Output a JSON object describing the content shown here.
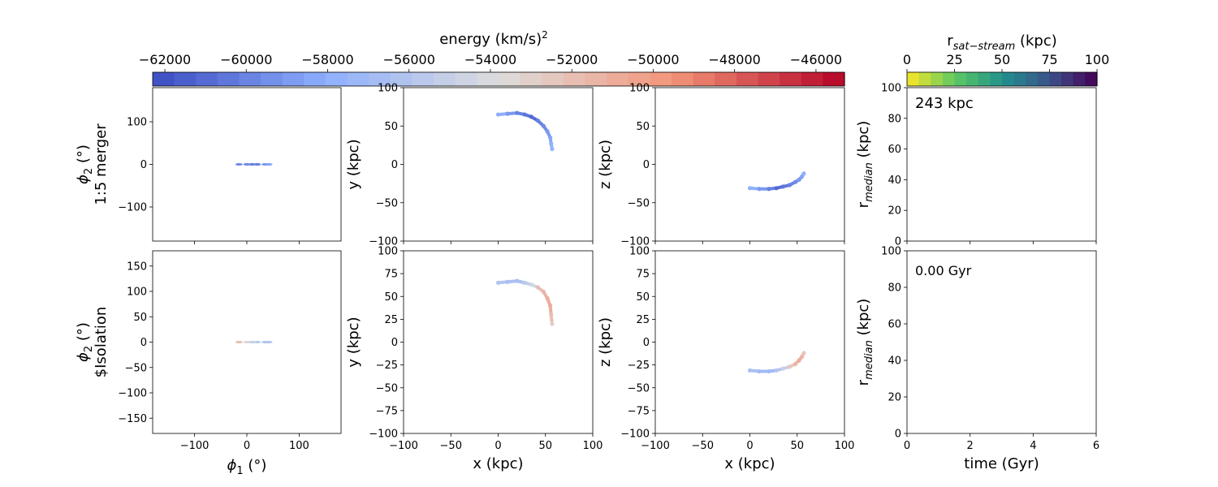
{
  "energy_colorbar": {
    "label_main": "energy (km/s)",
    "label_sup": "2",
    "ticks": [
      "−62000",
      "−60000",
      "−58000",
      "−56000",
      "−54000",
      "−52000",
      "−50000",
      "−48000",
      "−46000"
    ],
    "tick_values": [
      -62000,
      -60000,
      -58000,
      -56000,
      -54000,
      -52000,
      -50000,
      -48000,
      -46000
    ],
    "range": [
      -62300,
      -45300
    ],
    "colormap": "coolwarm"
  },
  "rsat_colorbar": {
    "label_main": "r",
    "label_sub": "sat−stream",
    "label_unit": " (kpc)",
    "ticks": [
      "0",
      "25",
      "50",
      "75",
      "100"
    ],
    "tick_values": [
      0,
      25,
      50,
      75,
      100
    ],
    "range": [
      0,
      100
    ],
    "colormap": "viridis_r"
  },
  "rows": [
    {
      "ylabel_phi": "ϕ",
      "ylabel_phi_sub": "2",
      "ylabel_phi_unit": " (°)",
      "ylabel_name": "1:5 merger",
      "sky_yticks": [
        "100",
        "0",
        "−100"
      ],
      "sky_ytick_values": [
        100,
        0,
        -100
      ],
      "sky_ylim": [
        -180,
        180
      ],
      "xy_ylabel": "y (kpc)",
      "xz_ylabel": "z (kpc)",
      "xy_yticks": [
        "100",
        "50",
        "0",
        "−50",
        "−100"
      ],
      "xy_ytick_values": [
        100,
        50,
        0,
        -50,
        -100
      ],
      "xz_yticks": [
        "100",
        "50",
        "0",
        "−50",
        "−100"
      ],
      "xz_ytick_values": [
        100,
        50,
        0,
        -50,
        -100
      ],
      "r_ylabel_main": "r",
      "r_ylabel_sub": "median",
      "r_ylabel_unit": " (kpc)",
      "r_yticks": [
        "100",
        "80",
        "60",
        "40",
        "20",
        "0"
      ],
      "r_ytick_values": [
        100,
        80,
        60,
        40,
        20,
        0
      ],
      "annotation": "243 kpc"
    },
    {
      "ylabel_phi": "ϕ",
      "ylabel_phi_sub": "2",
      "ylabel_phi_unit": " (°)",
      "ylabel_name": "$Isolation",
      "sky_yticks": [
        "150",
        "100",
        "50",
        "0",
        "−50",
        "−100",
        "−150"
      ],
      "sky_ytick_values": [
        150,
        100,
        50,
        0,
        -50,
        -100,
        -150
      ],
      "sky_ylim": [
        -180,
        180
      ],
      "xy_ylabel": "y (kpc)",
      "xz_ylabel": "z (kpc)",
      "xy_yticks": [
        "100",
        "75",
        "50",
        "25",
        "0",
        "−25",
        "−50",
        "−75",
        "−100"
      ],
      "xy_ytick_values": [
        100,
        75,
        50,
        25,
        0,
        -25,
        -50,
        -75,
        -100
      ],
      "xz_yticks": [
        "100",
        "75",
        "50",
        "25",
        "0",
        "−25",
        "−50",
        "−75",
        "−100"
      ],
      "xz_ytick_values": [
        100,
        75,
        50,
        25,
        0,
        -25,
        -50,
        -75,
        -100
      ],
      "r_ylabel_main": "r",
      "r_ylabel_sub": "median",
      "r_ylabel_unit": " (kpc)",
      "r_yticks": [
        "100",
        "80",
        "60",
        "40",
        "20",
        "0"
      ],
      "r_ytick_values": [
        100,
        80,
        60,
        40,
        20,
        0
      ],
      "annotation": "0.00 Gyr"
    }
  ],
  "bottom_axes": {
    "sky_xlabel_phi": "ϕ",
    "sky_xlabel_sub": "1",
    "sky_xlabel_unit": " (°)",
    "sky_xticks": [
      "−100",
      "0",
      "100"
    ],
    "sky_xtick_values": [
      -100,
      0,
      100
    ],
    "sky_xlim": [
      -180,
      180
    ],
    "xy_xlabel": "x (kpc)",
    "xz_xlabel": "x (kpc)",
    "kpc_xticks": [
      "−100",
      "−50",
      "0",
      "50",
      "100"
    ],
    "kpc_xtick_values": [
      -100,
      -50,
      0,
      50,
      100
    ],
    "kpc_lim": [
      -100,
      100
    ],
    "time_xlabel": "time (Gyr)",
    "time_xticks": [
      "0",
      "2",
      "4",
      "6"
    ],
    "time_xtick_values": [
      0,
      2,
      4,
      6
    ],
    "time_xlim": [
      0,
      6
    ],
    "r_ylim": [
      0,
      100
    ]
  },
  "chart_data": [
    {
      "type": "scatter",
      "panel": "sky-merger",
      "xlabel": "",
      "ylabel": "ϕ2 (°) 1:5 merger",
      "xlim": [
        -180,
        180
      ],
      "ylim": [
        -180,
        180
      ],
      "points": [
        [
          -15,
          0,
          -59500
        ],
        [
          0,
          0,
          -59500
        ],
        [
          10,
          0,
          -60000
        ],
        [
          20,
          0,
          -60000
        ],
        [
          35,
          0,
          -59000
        ],
        [
          42,
          0,
          -58500
        ]
      ]
    },
    {
      "type": "scatter",
      "panel": "xy-merger",
      "xlabel": "",
      "ylabel": "y (kpc)",
      "xlim": [
        -100,
        100
      ],
      "ylim": [
        -100,
        100
      ],
      "points": [
        [
          0,
          65,
          -58000
        ],
        [
          10,
          66,
          -59000
        ],
        [
          20,
          67,
          -60000
        ],
        [
          28,
          65,
          -60500
        ],
        [
          35,
          62,
          -61000
        ],
        [
          42,
          57,
          -60000
        ],
        [
          48,
          50,
          -59500
        ],
        [
          52,
          43,
          -59000
        ],
        [
          55,
          35,
          -58500
        ],
        [
          56,
          27,
          -58000
        ],
        [
          57,
          20,
          -57500
        ]
      ]
    },
    {
      "type": "scatter",
      "panel": "xz-merger",
      "xlabel": "",
      "ylabel": "z (kpc)",
      "xlim": [
        -100,
        100
      ],
      "ylim": [
        -100,
        100
      ],
      "points": [
        [
          0,
          -31,
          -58000
        ],
        [
          10,
          -32,
          -59000
        ],
        [
          20,
          -32,
          -60000
        ],
        [
          28,
          -31,
          -61000
        ],
        [
          35,
          -29,
          -60500
        ],
        [
          42,
          -27,
          -60000
        ],
        [
          48,
          -23,
          -59500
        ],
        [
          52,
          -20,
          -59000
        ],
        [
          55,
          -16,
          -58500
        ],
        [
          57,
          -12,
          -58000
        ]
      ]
    },
    {
      "type": "line",
      "panel": "r-merger",
      "xlabel": "",
      "ylabel": "rmedian (kpc)",
      "xlim": [
        0,
        6
      ],
      "ylim": [
        0,
        100
      ],
      "series": []
    },
    {
      "type": "scatter",
      "panel": "sky-isolation",
      "xlabel": "ϕ1 (°)",
      "ylabel": "ϕ2 (°) $Isolation",
      "xlim": [
        -180,
        180
      ],
      "ylim": [
        -180,
        180
      ],
      "points": [
        [
          -15,
          0,
          -52000
        ],
        [
          0,
          0,
          -53500
        ],
        [
          10,
          0,
          -55000
        ],
        [
          20,
          0,
          -55500
        ],
        [
          35,
          0,
          -56000
        ],
        [
          42,
          0,
          -56000
        ]
      ]
    },
    {
      "type": "scatter",
      "panel": "xy-isolation",
      "xlabel": "x (kpc)",
      "ylabel": "y (kpc)",
      "xlim": [
        -100,
        100
      ],
      "ylim": [
        -100,
        100
      ],
      "points": [
        [
          0,
          65,
          -56000
        ],
        [
          10,
          66,
          -56500
        ],
        [
          20,
          67,
          -56500
        ],
        [
          28,
          65,
          -55500
        ],
        [
          35,
          63,
          -54500
        ],
        [
          42,
          60,
          -52000
        ],
        [
          48,
          55,
          -51500
        ],
        [
          52,
          48,
          -51000
        ],
        [
          55,
          40,
          -51000
        ],
        [
          56,
          30,
          -52000
        ],
        [
          57,
          20,
          -53000
        ]
      ]
    },
    {
      "type": "scatter",
      "panel": "xz-isolation",
      "xlabel": "x (kpc)",
      "ylabel": "z (kpc)",
      "xlim": [
        -100,
        100
      ],
      "ylim": [
        -100,
        100
      ],
      "points": [
        [
          0,
          -31,
          -56500
        ],
        [
          10,
          -32,
          -57000
        ],
        [
          20,
          -32,
          -57000
        ],
        [
          28,
          -31,
          -56000
        ],
        [
          35,
          -29,
          -55000
        ],
        [
          42,
          -27,
          -52500
        ],
        [
          48,
          -24,
          -51500
        ],
        [
          52,
          -20,
          -51000
        ],
        [
          55,
          -16,
          -51500
        ],
        [
          57,
          -12,
          -52500
        ]
      ]
    },
    {
      "type": "line",
      "panel": "r-isolation",
      "xlabel": "time (Gyr)",
      "ylabel": "rmedian (kpc)",
      "xlim": [
        0,
        6
      ],
      "ylim": [
        0,
        100
      ],
      "series": []
    }
  ]
}
